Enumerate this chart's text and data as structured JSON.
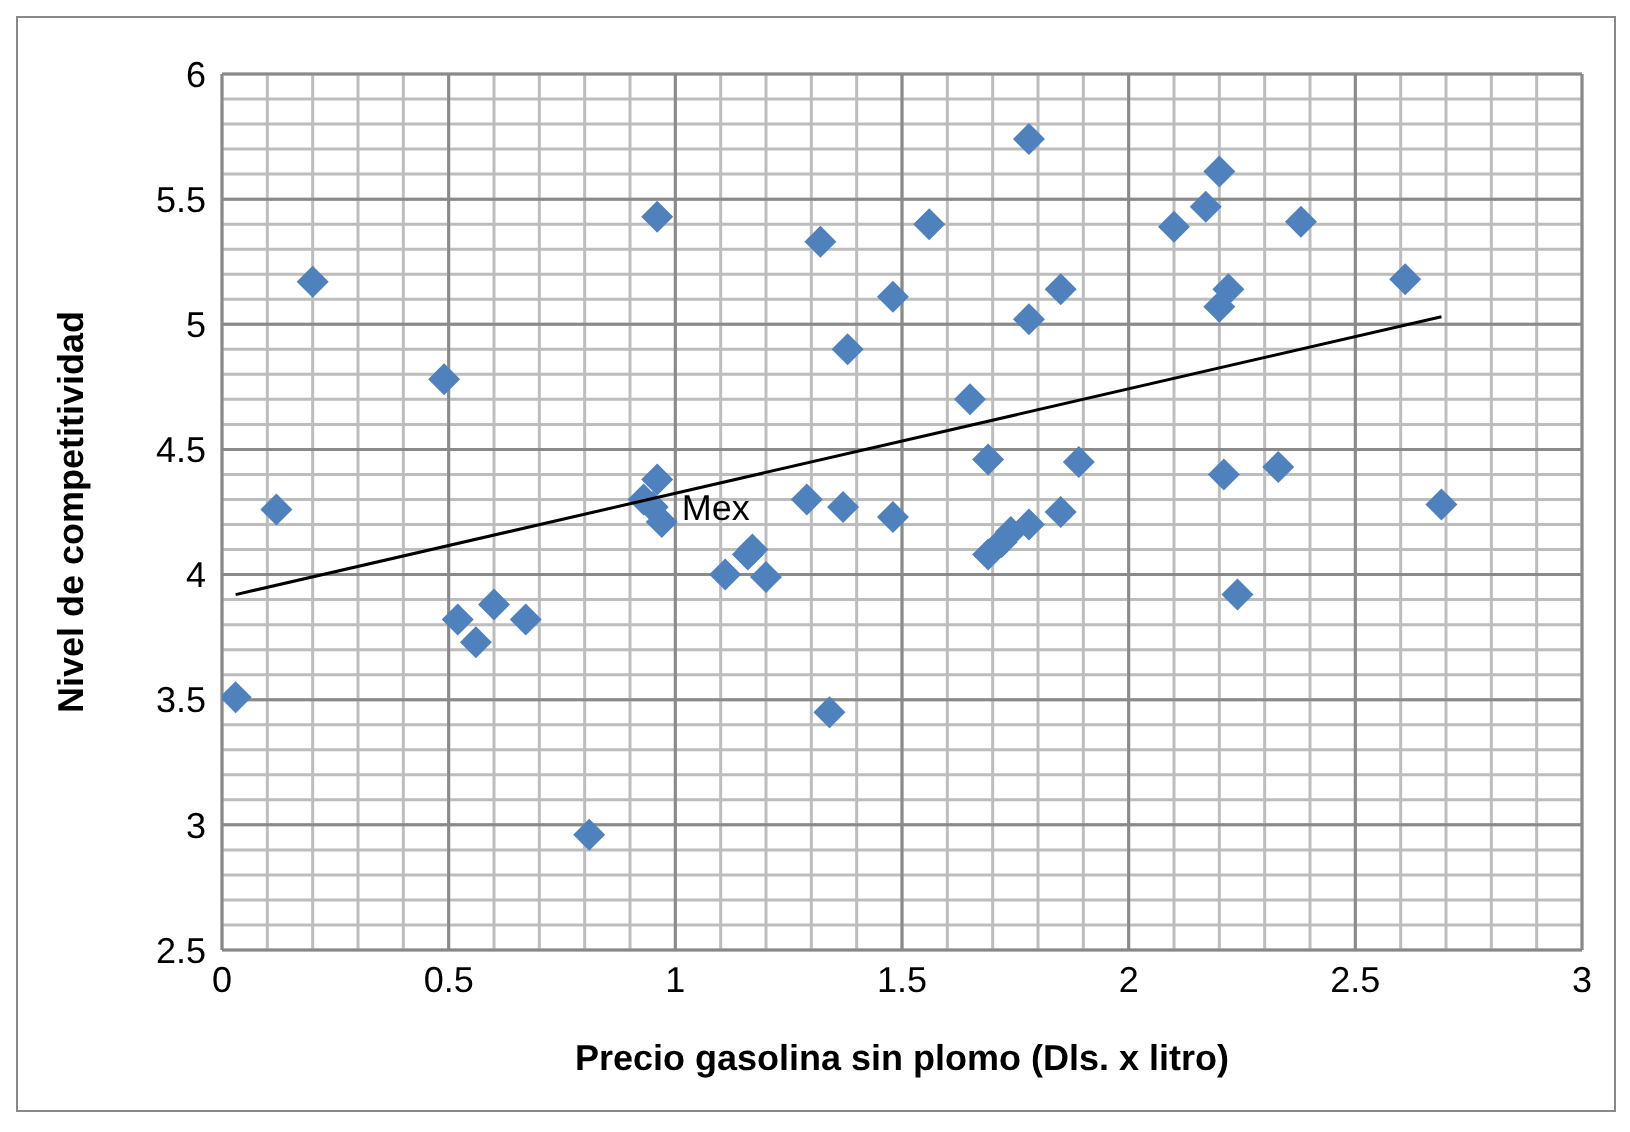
{
  "chart_data": {
    "type": "scatter",
    "xlabel": "Precio gasolina sin plomo (Dls. x litro)",
    "ylabel": "Nivel de competitividad",
    "xlim": [
      0,
      3
    ],
    "xticks": [
      0,
      0.5,
      1,
      1.5,
      2,
      2.5,
      3
    ],
    "ylim": [
      2.5,
      6
    ],
    "yticks": [
      2.5,
      3,
      3.5,
      4,
      4.5,
      5,
      5.5,
      6
    ],
    "grid": true,
    "legend": false,
    "annotations": [
      {
        "text": "Mex",
        "x": 0.97,
        "y": 4.27
      }
    ],
    "series": [
      {
        "color": "#4f81bd",
        "marker": "diamond",
        "x": [
          0.03,
          0.12,
          0.2,
          0.49,
          0.52,
          0.56,
          0.6,
          0.67,
          0.81,
          0.93,
          0.96,
          0.96,
          0.97,
          0.95,
          1.11,
          1.16,
          1.17,
          1.2,
          1.29,
          1.32,
          1.34,
          1.37,
          1.38,
          1.48,
          1.48,
          1.56,
          1.65,
          1.69,
          1.69,
          1.72,
          1.74,
          1.78,
          1.78,
          1.78,
          1.85,
          1.85,
          1.89,
          2.1,
          2.17,
          2.2,
          2.2,
          2.21,
          2.22,
          2.24,
          2.33,
          2.38,
          2.61,
          2.69
        ],
        "values": [
          3.51,
          4.26,
          5.17,
          4.78,
          3.82,
          3.73,
          3.88,
          3.82,
          2.96,
          4.3,
          5.43,
          4.38,
          4.21,
          4.27,
          4.0,
          4.08,
          4.1,
          3.99,
          4.3,
          5.33,
          3.45,
          4.27,
          4.9,
          5.11,
          4.23,
          5.4,
          4.7,
          4.46,
          4.08,
          4.13,
          4.17,
          4.2,
          5.02,
          5.74,
          5.14,
          4.25,
          4.45,
          5.39,
          5.47,
          5.61,
          5.07,
          4.4,
          5.14,
          3.92,
          4.43,
          5.41,
          5.18,
          4.28
        ]
      },
      {
        "type": "line",
        "color": "#000000",
        "marker": "none",
        "line_style": "solid",
        "x": [
          0.03,
          2.69
        ],
        "values": [
          3.92,
          5.03
        ]
      }
    ]
  }
}
